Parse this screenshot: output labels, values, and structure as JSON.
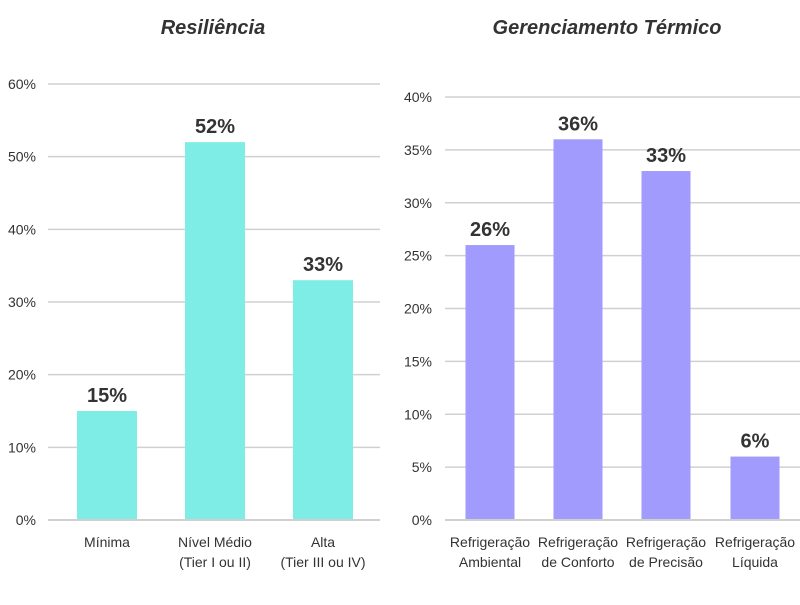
{
  "chart_data": [
    {
      "type": "bar",
      "title": "Resiliência",
      "categories": [
        [
          "Mínima"
        ],
        [
          "Nível Médio",
          "(Tier I ou II)"
        ],
        [
          "Alta",
          "(Tier III ou IV)"
        ]
      ],
      "values": [
        15,
        52,
        33
      ],
      "value_labels": [
        "15%",
        "52%",
        "33%"
      ],
      "ylim": [
        0,
        60
      ],
      "yticks": [
        0,
        10,
        20,
        30,
        40,
        50,
        60
      ],
      "ytick_labels": [
        "0%",
        "10%",
        "20%",
        "30%",
        "40%",
        "50%",
        "60%"
      ],
      "grid": true,
      "color": "#7EEDE6"
    },
    {
      "type": "bar",
      "title": "Gerenciamento Térmico",
      "categories": [
        [
          "Refrigeração",
          "Ambiental"
        ],
        [
          "Refrigeração",
          "de Conforto"
        ],
        [
          "Refrigeração",
          "de Precisão"
        ],
        [
          "Refrigeração",
          "Líquida"
        ]
      ],
      "values": [
        26,
        36,
        33,
        6
      ],
      "value_labels": [
        "26%",
        "36%",
        "33%",
        "6%"
      ],
      "ylim": [
        0,
        40
      ],
      "yticks": [
        0,
        5,
        10,
        15,
        20,
        25,
        30,
        35,
        40
      ],
      "ytick_labels": [
        "0%",
        "5%",
        "10%",
        "15%",
        "20%",
        "25%",
        "30%",
        "35%",
        "40%"
      ],
      "grid": true,
      "color": "#A29BFE"
    }
  ]
}
